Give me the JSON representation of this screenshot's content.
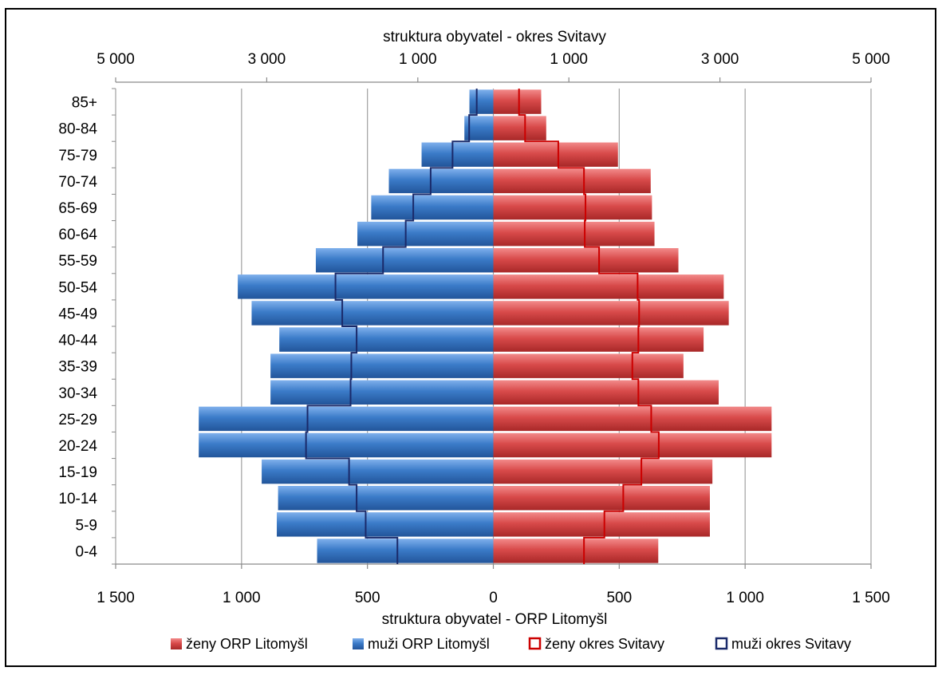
{
  "chart_data": {
    "type": "bar",
    "orientation": "horizontal",
    "subtype": "population-pyramid",
    "categories": [
      "0-4",
      "5-9",
      "10-14",
      "15-19",
      "20-24",
      "25-29",
      "30-34",
      "35-39",
      "40-44",
      "45-49",
      "50-54",
      "55-59",
      "60-64",
      "65-69",
      "70-74",
      "75-79",
      "80-84",
      "85+"
    ],
    "series": [
      {
        "name": "ženy ORP Litomyšl",
        "axis": "bottom",
        "side": "right",
        "style": "filled",
        "color": "#d84a4a",
        "values": [
          655,
          860,
          860,
          870,
          1105,
          1105,
          895,
          755,
          835,
          935,
          915,
          735,
          640,
          630,
          625,
          495,
          210,
          190
        ]
      },
      {
        "name": "muži ORP Litomyšl",
        "axis": "bottom",
        "side": "left",
        "style": "filled",
        "color": "#3b7bc8",
        "values": [
          700,
          860,
          855,
          920,
          1170,
          1170,
          885,
          885,
          850,
          960,
          1015,
          705,
          540,
          485,
          415,
          285,
          115,
          95
        ]
      },
      {
        "name": "ženy okres Svitavy",
        "axis": "top",
        "side": "right",
        "style": "outline",
        "color": "#cc0000",
        "values": [
          1200,
          1470,
          1720,
          1960,
          2190,
          2090,
          1920,
          1840,
          1920,
          1930,
          1910,
          1400,
          1210,
          1220,
          1200,
          860,
          420,
          340
        ]
      },
      {
        "name": "muži okres Svitavy",
        "axis": "top",
        "side": "left",
        "style": "outline",
        "color": "#1a2a6a",
        "values": [
          1270,
          1690,
          1810,
          1910,
          2480,
          2460,
          1890,
          1880,
          1810,
          2000,
          2090,
          1460,
          1160,
          1060,
          830,
          540,
          320,
          220
        ]
      }
    ],
    "bottom_axis": {
      "title": "struktura obyvatel - ORP Litomyšl",
      "range": [
        -1500,
        1500
      ],
      "ticks": [
        -1500,
        -1000,
        -500,
        0,
        500,
        1000,
        1500
      ],
      "tick_labels": [
        "1 500",
        "1 000",
        "500",
        "0",
        "500",
        "1 000",
        "1 500"
      ]
    },
    "top_axis": {
      "title": "struktura obyvatel - okres Svitavy",
      "range": [
        -5000,
        5000
      ],
      "ticks": [
        -5000,
        -3000,
        -1000,
        1000,
        3000,
        5000
      ],
      "tick_labels": [
        "5 000",
        "3 000",
        "1 000",
        "1 000",
        "3 000",
        "5 000"
      ]
    },
    "grid": true,
    "legend_position": "bottom",
    "legend": [
      {
        "label": "ženy ORP Litomyšl",
        "style": "filled",
        "color": "#d84a4a"
      },
      {
        "label": "muži ORP Litomyšl",
        "style": "filled",
        "color": "#3b7bc8"
      },
      {
        "label": "ženy okres Svitavy",
        "style": "outline",
        "color": "#cc0000"
      },
      {
        "label": "muži okres Svitavy",
        "style": "outline",
        "color": "#1a2a6a"
      }
    ]
  }
}
